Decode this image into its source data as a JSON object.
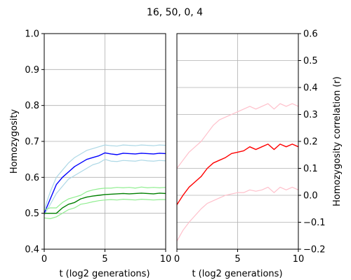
{
  "figure": {
    "title": "16, 50, 0, 4"
  },
  "colors": {
    "blue_mean": "#0000ff",
    "blue_band": "#add8e6",
    "green_mean": "#008000",
    "green_band": "#90ee90",
    "red_mean": "#ff0000",
    "red_band": "#ffc0cb",
    "grid": "#b0b0b0"
  },
  "chart_data": [
    {
      "type": "line",
      "title": "",
      "xlabel": "t (log2 generations)",
      "ylabel": "Homozygosity",
      "xlim": [
        0,
        10
      ],
      "ylim": [
        0.4,
        1.0
      ],
      "xticks": [
        "0",
        "5",
        "10"
      ],
      "yticks": [
        "0.4",
        "0.5",
        "0.6",
        "0.7",
        "0.8",
        "0.9",
        "1.0"
      ],
      "grid": true,
      "x": [
        0,
        0.5,
        1,
        1.5,
        2,
        2.5,
        3,
        3.5,
        4,
        4.5,
        5,
        5.5,
        6,
        6.5,
        7,
        7.5,
        8,
        8.5,
        9,
        9.5,
        10
      ],
      "series": [
        {
          "color": "blue_band",
          "values": [
            0.51,
            0.56,
            0.6,
            0.62,
            0.64,
            0.655,
            0.665,
            0.675,
            0.68,
            0.685,
            0.69,
            0.688,
            0.687,
            0.69,
            0.689,
            0.688,
            0.69,
            0.689,
            0.688,
            0.69,
            0.689
          ]
        },
        {
          "color": "blue_mean",
          "values": [
            0.5,
            0.54,
            0.58,
            0.6,
            0.615,
            0.63,
            0.64,
            0.65,
            0.655,
            0.66,
            0.668,
            0.665,
            0.663,
            0.667,
            0.666,
            0.665,
            0.667,
            0.666,
            0.665,
            0.667,
            0.666
          ]
        },
        {
          "color": "blue_band",
          "values": [
            0.495,
            0.525,
            0.555,
            0.575,
            0.595,
            0.605,
            0.615,
            0.625,
            0.635,
            0.64,
            0.65,
            0.645,
            0.644,
            0.647,
            0.646,
            0.645,
            0.648,
            0.646,
            0.645,
            0.647,
            0.646
          ]
        },
        {
          "color": "green_band",
          "values": [
            0.51,
            0.515,
            0.515,
            0.53,
            0.54,
            0.545,
            0.55,
            0.56,
            0.565,
            0.568,
            0.57,
            0.57,
            0.572,
            0.571,
            0.572,
            0.57,
            0.573,
            0.571,
            0.572,
            0.571,
            0.572
          ]
        },
        {
          "color": "green_mean",
          "values": [
            0.5,
            0.5,
            0.5,
            0.515,
            0.525,
            0.53,
            0.54,
            0.545,
            0.548,
            0.55,
            0.552,
            0.553,
            0.554,
            0.555,
            0.554,
            0.555,
            0.556,
            0.555,
            0.554,
            0.556,
            0.555
          ]
        },
        {
          "color": "green_band",
          "values": [
            0.487,
            0.485,
            0.49,
            0.5,
            0.51,
            0.515,
            0.525,
            0.528,
            0.532,
            0.535,
            0.537,
            0.538,
            0.537,
            0.539,
            0.538,
            0.537,
            0.539,
            0.538,
            0.537,
            0.538,
            0.538
          ]
        }
      ]
    },
    {
      "type": "line",
      "title": "",
      "xlabel": "t (log2 generations)",
      "ylabel": "Homozygosity correlation (r)",
      "xlim": [
        0,
        10
      ],
      "ylim": [
        -0.2,
        0.6
      ],
      "xticks": [
        "0",
        "5",
        "10"
      ],
      "yticks": [
        "−0.2",
        "−0.1",
        "0.0",
        "0.1",
        "0.2",
        "0.3",
        "0.4",
        "0.5",
        "0.6"
      ],
      "grid": true,
      "x": [
        0,
        0.5,
        1,
        1.5,
        2,
        2.5,
        3,
        3.5,
        4,
        4.5,
        5,
        5.5,
        6,
        6.5,
        7,
        7.5,
        8,
        8.5,
        9,
        9.5,
        10
      ],
      "series": [
        {
          "color": "red_band",
          "values": [
            0.1,
            0.13,
            0.16,
            0.18,
            0.2,
            0.23,
            0.26,
            0.28,
            0.29,
            0.3,
            0.31,
            0.32,
            0.33,
            0.32,
            0.33,
            0.34,
            0.32,
            0.34,
            0.33,
            0.34,
            0.33
          ]
        },
        {
          "color": "red_mean",
          "values": [
            -0.035,
            0.0,
            0.03,
            0.05,
            0.07,
            0.1,
            0.12,
            0.13,
            0.14,
            0.155,
            0.16,
            0.165,
            0.18,
            0.17,
            0.18,
            0.19,
            0.17,
            0.19,
            0.18,
            0.19,
            0.18
          ]
        },
        {
          "color": "red_band",
          "values": [
            -0.17,
            -0.13,
            -0.1,
            -0.075,
            -0.05,
            -0.03,
            -0.02,
            -0.01,
            0.0,
            0.005,
            0.01,
            0.01,
            0.02,
            0.015,
            0.02,
            0.03,
            0.01,
            0.03,
            0.02,
            0.03,
            0.02
          ]
        }
      ]
    }
  ]
}
